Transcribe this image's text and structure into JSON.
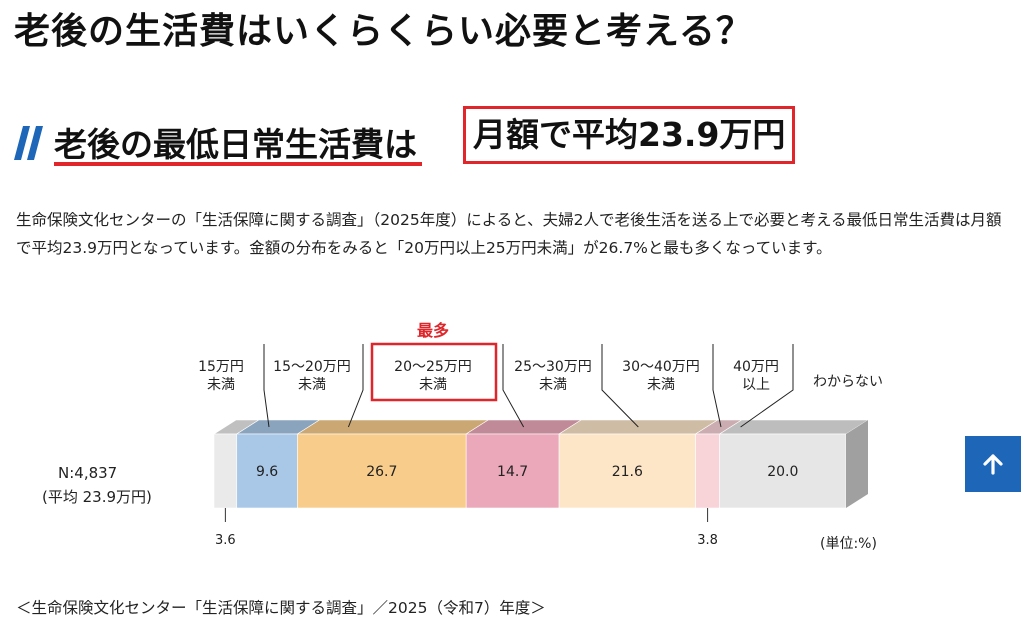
{
  "page": {
    "title": "老後の生活費はいくらくらい必要と考える？",
    "heading_part1": "老後の最低日常生活費は",
    "heading_part2": "月額で平均23.9万円",
    "intro": "生命保険文化センターの「生活保障に関する調査」（2025年度）によると、夫婦2人で老後生活を送る上で必要と考える最低日常生活費は月額で平均23.9万円となっています。金額の分布をみると「20万円以上25万円未満」が26.7%と最も多くなっています。",
    "source": "＜生命保険文化センター「生活保障に関する調査」／2025（令和7）年度＞"
  },
  "chart_data": {
    "type": "bar",
    "orientation": "horizontal-stacked-100",
    "row_label_line1": "N:4,837",
    "row_label_line2": "(平均 23.9万円)",
    "unit_label": "(単位:%)",
    "highlight_label": "最多",
    "highlight_category_index": 2,
    "segments": [
      {
        "label_lines": [
          "15万円",
          "未満"
        ],
        "value": 3.6,
        "color": "#eaeaea"
      },
      {
        "label_lines": [
          "15〜20万円",
          "未満"
        ],
        "value": 9.6,
        "color": "#a9c8e8"
      },
      {
        "label_lines": [
          "20〜25万円",
          "未満"
        ],
        "value": 26.7,
        "color": "#f8cd8c"
      },
      {
        "label_lines": [
          "25〜30万円",
          "未満"
        ],
        "value": 14.7,
        "color": "#eaa8ba"
      },
      {
        "label_lines": [
          "30〜40万円",
          "未満"
        ],
        "value": 21.6,
        "color": "#fde5c8"
      },
      {
        "label_lines": [
          "40万円",
          "以上"
        ],
        "value": 3.8,
        "color": "#f8d3d8"
      },
      {
        "label_lines": [
          "わからない"
        ],
        "value": 20.0,
        "color": "#e6e6e6"
      }
    ],
    "value_labels": [
      "3.6",
      "9.6",
      "26.7",
      "14.7",
      "21.6",
      "3.8",
      "20.0"
    ]
  },
  "icons": {
    "scroll_top": "arrow-up-icon",
    "heading_mark": "double-slash-icon"
  },
  "colors": {
    "accent_red": "#e0262b",
    "button_blue": "#1d66b8",
    "heading_blue": "#1d66b8"
  }
}
